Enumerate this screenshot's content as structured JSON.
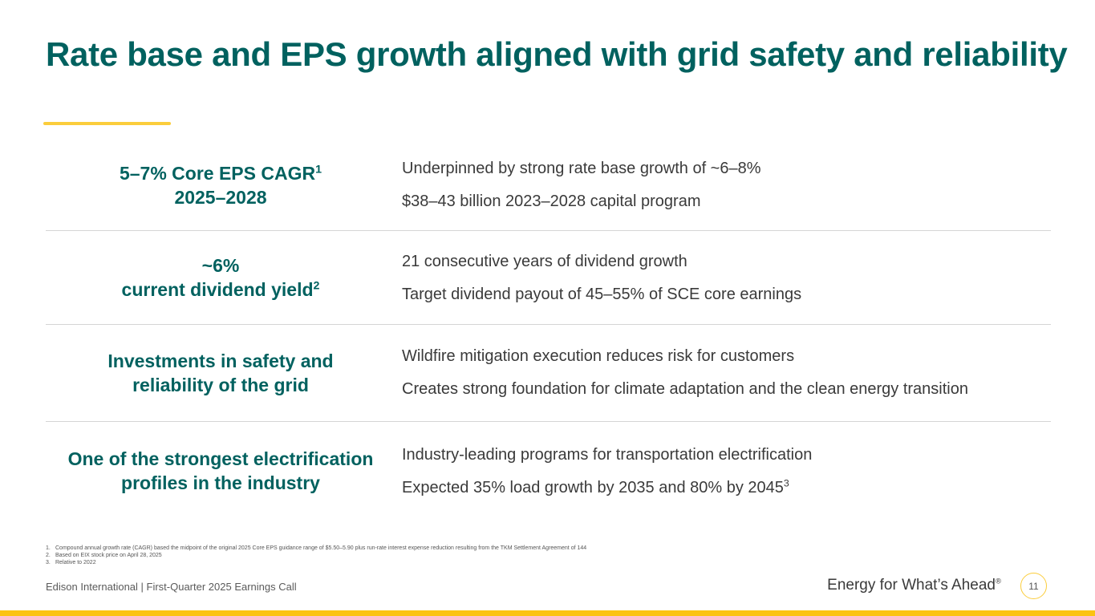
{
  "slide": {
    "title": "Rate base and EPS growth aligned with grid safety and reliability",
    "accent_color": "#fbcd3c",
    "title_color": "#00615f"
  },
  "rows": [
    {
      "left_line1": "5–7% Core EPS CAGR",
      "left_line1_sup": "1",
      "left_line2": "2025–2028",
      "right_items": [
        "Underpinned by strong rate base growth of ~6–8%",
        "$38–43 billion 2023–2028 capital program"
      ]
    },
    {
      "left_line1": "~6%",
      "left_line2": "current dividend yield",
      "left_line2_sup": "2",
      "right_items": [
        "21 consecutive years of dividend growth",
        "Target dividend payout of 45–55% of SCE core earnings"
      ]
    },
    {
      "left_line1": "Investments in safety and",
      "left_line2": "reliability of the grid",
      "right_items": [
        "Wildfire mitigation execution reduces risk for customers",
        "Creates strong foundation for climate adaptation and the clean energy transition"
      ]
    },
    {
      "left_line1": "One of the strongest electrification",
      "left_line2": "profiles in the industry",
      "right_items": [
        "Industry-leading programs for transportation electrification",
        "Expected 35% load growth by 2035 and 80% by 2045"
      ],
      "right_item2_sup": "3"
    }
  ],
  "footnotes": [
    {
      "num": "1.",
      "text": "Compound annual growth rate (CAGR) based the midpoint of the original 2025 Core EPS guidance range of $5.50–5.90 plus run-rate interest expense reduction resulting from the TKM Settlement Agreement of 144"
    },
    {
      "num": "2.",
      "text": "Based on EIX stock price on April 28, 2025"
    },
    {
      "num": "3.",
      "text": "Relative to 2022"
    }
  ],
  "footer": {
    "left": "Edison International |  First-Quarter 2025 Earnings Call",
    "tagline": "Energy for What’s Ahead",
    "tagline_mark": "®",
    "page_number": "11"
  }
}
